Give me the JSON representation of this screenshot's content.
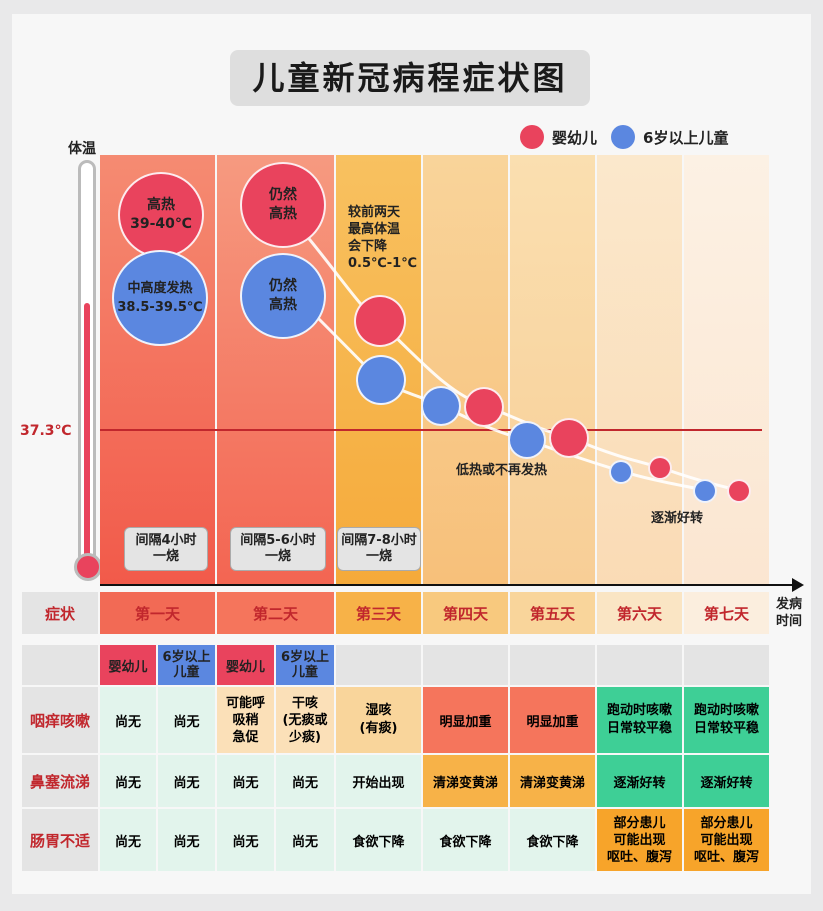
{
  "title": "儿童新冠病程症状图",
  "legend": {
    "infant": {
      "label": "婴幼儿",
      "color": "#e9435d"
    },
    "older": {
      "label": "6岁以上儿童",
      "color": "#5b87e0"
    }
  },
  "y_axis_label": "体温",
  "reference_line": {
    "label": "37.3℃",
    "value": 37.3
  },
  "x_axis_label": "发病时间",
  "symptom_header": "症状",
  "days": [
    "第一天",
    "第二天",
    "第三天",
    "第四天",
    "第五天",
    "第六天",
    "第七天"
  ],
  "intervals": [
    "间隔4小时\n一烧",
    "间隔5-6小时\n一烧",
    "间隔7-8小时\n一烧"
  ],
  "bubble_labels": {
    "day1_infant": "高热\n39-40℃",
    "day1_older": "中高度发热\n38.5-39.5℃",
    "day2_infant": "仍然\n高热",
    "day2_older": "仍然\n高热"
  },
  "notes": {
    "day3": "较前两天\n最高体温\n会下降\n0.5℃-1℃",
    "low_fever": "低热或不再发热",
    "recovering": "逐渐好转"
  },
  "chart_data": {
    "type": "scatter",
    "title": "儿童新冠病程症状图",
    "xlabel": "发病时间",
    "ylabel": "体温",
    "categories": [
      "第一天",
      "第二天",
      "第三天",
      "第四天",
      "第五天",
      "第六天",
      "第七天"
    ],
    "reference_line": 37.3,
    "series": [
      {
        "name": "婴幼儿",
        "color": "#e9435d",
        "values": [
          "39-40℃",
          "仍然高热",
          "较前两天最高体温会下降0.5℃-1℃",
          null,
          "低热或不再发热",
          null,
          "逐渐好转"
        ]
      },
      {
        "name": "6岁以上儿童",
        "color": "#5b87e0",
        "values": [
          "38.5-39.5℃",
          "仍然高热",
          "较前两天最高体温会下降0.5℃-1℃",
          null,
          "低热或不再发热",
          null,
          "逐渐好转"
        ]
      }
    ]
  },
  "table": {
    "subheaders": [
      "婴幼儿",
      "6岁以上\n儿童",
      "婴幼儿",
      "6岁以上\n儿童"
    ],
    "rows": [
      {
        "label": "咽痒咳嗽",
        "cells": [
          "尚无",
          "尚无",
          "可能呼\n吸稍\n急促",
          "干咳\n(无痰或\n少痰)",
          "湿咳\n(有痰)",
          "明显加重",
          "明显加重",
          "跑动时咳嗽\n日常较平稳",
          "跑动时咳嗽\n日常较平稳"
        ]
      },
      {
        "label": "鼻塞流涕",
        "cells": [
          "尚无",
          "尚无",
          "尚无",
          "尚无",
          "开始出现",
          "清涕变黄涕",
          "清涕变黄涕",
          "逐渐好转",
          "逐渐好转"
        ]
      },
      {
        "label": "肠胃不适",
        "cells": [
          "尚无",
          "尚无",
          "尚无",
          "尚无",
          "食欲下降",
          "食欲下降",
          "食欲下降",
          "部分患儿\n可能出现\n呕吐、腹泻",
          "部分患儿\n可能出现\n呕吐、腹泻"
        ]
      }
    ]
  },
  "colors": {
    "day1_bg": "#f26a55",
    "day2_bg": "#f5755c",
    "day3_bg": "#f7b248",
    "day4_bg": "#f8c97e",
    "day5_bg": "#f9d59b",
    "day6_bg": "#fae5c4",
    "day7_bg": "#fbeede",
    "reference_line": "#c1272d"
  }
}
